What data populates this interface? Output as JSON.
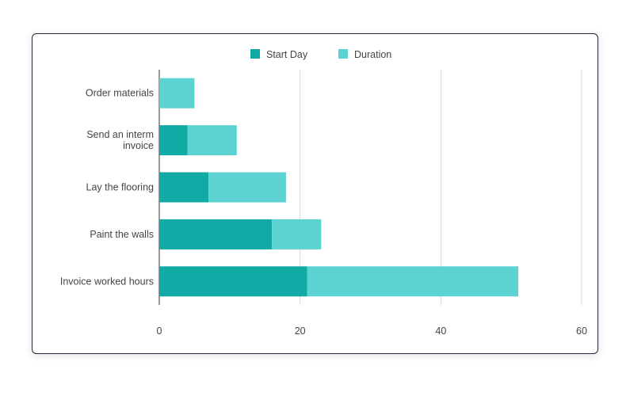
{
  "chart_data": {
    "type": "bar",
    "orientation": "horizontal",
    "stacked": true,
    "title": "",
    "xlabel": "",
    "ylabel": "",
    "categories": [
      "Order materials",
      [
        "Send an interm",
        "invoice"
      ],
      "Lay the flooring",
      "Paint the walls",
      "Invoice worked hours"
    ],
    "series": [
      {
        "name": "Start Day",
        "color": "#12aaa5",
        "values": [
          0,
          4,
          7,
          16,
          21
        ]
      },
      {
        "name": "Duration",
        "color": "#5cd3d2",
        "values": [
          5,
          7,
          11,
          7,
          30
        ]
      }
    ],
    "xlim": [
      0,
      60
    ],
    "xticks": [
      "0",
      "20",
      "40",
      "60"
    ],
    "grid": true,
    "legend_position": "top-center"
  }
}
